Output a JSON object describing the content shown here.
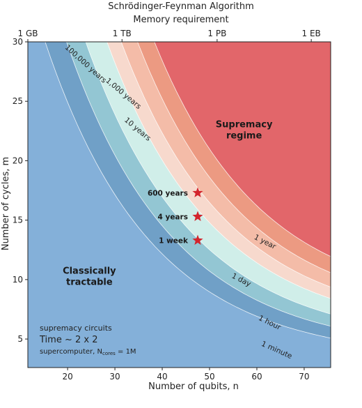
{
  "chart_data": {
    "type": "area",
    "title": "Schrödinger-Feynman Algorithm",
    "top_axis_label": "Memory requirement",
    "top_ticks": [
      {
        "x": 11.6,
        "label": "1 GB"
      },
      {
        "x": 31.5,
        "label": "1 TB"
      },
      {
        "x": 51.6,
        "label": "1 PB"
      },
      {
        "x": 71.5,
        "label": "1 EB"
      }
    ],
    "xlabel": "Number of qubits, n",
    "ylabel": "Number of cycles, m",
    "xlim": [
      11.6,
      75.6
    ],
    "ylim": [
      2.6,
      30
    ],
    "xticks": [
      20,
      30,
      40,
      50,
      60,
      70
    ],
    "yticks": [
      5,
      10,
      15,
      20,
      25,
      30
    ],
    "regions": [
      {
        "label": "Classically\ntractable",
        "color": "#84b0d9",
        "k": 0
      },
      {
        "label": "",
        "color": "#70a0c7",
        "k": 0.33
      },
      {
        "label": "",
        "color": "#93c6d3",
        "k": 0.66
      },
      {
        "label": "",
        "color": "#d0eee9",
        "k": 1.0
      },
      {
        "label": "",
        "color": "#f7d9cd",
        "k": 1.43
      },
      {
        "label": "",
        "color": "#f4bca8",
        "k": 1.75
      },
      {
        "label": "",
        "color": "#ec9a82",
        "k": 2.15
      },
      {
        "label": "Supremacy\nregime",
        "color": "#e2666a",
        "k": 2.6
      }
    ],
    "contour_labels": [
      {
        "text": "1 minute",
        "x": 64.0,
        "y": 3.9,
        "angle": 24
      },
      {
        "text": "1 hour",
        "x": 62.5,
        "y": 6.2,
        "angle": 26
      },
      {
        "text": "1 day",
        "x": 56.5,
        "y": 9.8,
        "angle": 27
      },
      {
        "text": "1 year",
        "x": 61.5,
        "y": 13.0,
        "angle": 27
      },
      {
        "text": "10 years",
        "x": 34.5,
        "y": 22.5,
        "angle": 40
      },
      {
        "text": "1,000 years",
        "x": 31.5,
        "y": 25.5,
        "angle": 40
      },
      {
        "text": "100,000 years",
        "x": 23.5,
        "y": 28.0,
        "angle": 42
      }
    ],
    "points": [
      {
        "label": "600 years",
        "n": 47.5,
        "m": 17.3
      },
      {
        "label": "4 years",
        "n": 47.5,
        "m": 15.3
      },
      {
        "label": "1 week",
        "n": 47.5,
        "m": 13.3
      }
    ],
    "annotation": {
      "line1": "supremacy circuits",
      "line2": "Time ~ 2 x 2",
      "line3": "supercomputer, N",
      "line3_sub": "cores",
      "line3_end": " = 1M"
    },
    "colors": {
      "star": "#d3252d",
      "contour": "#ffffff",
      "axis": "#222222"
    }
  }
}
